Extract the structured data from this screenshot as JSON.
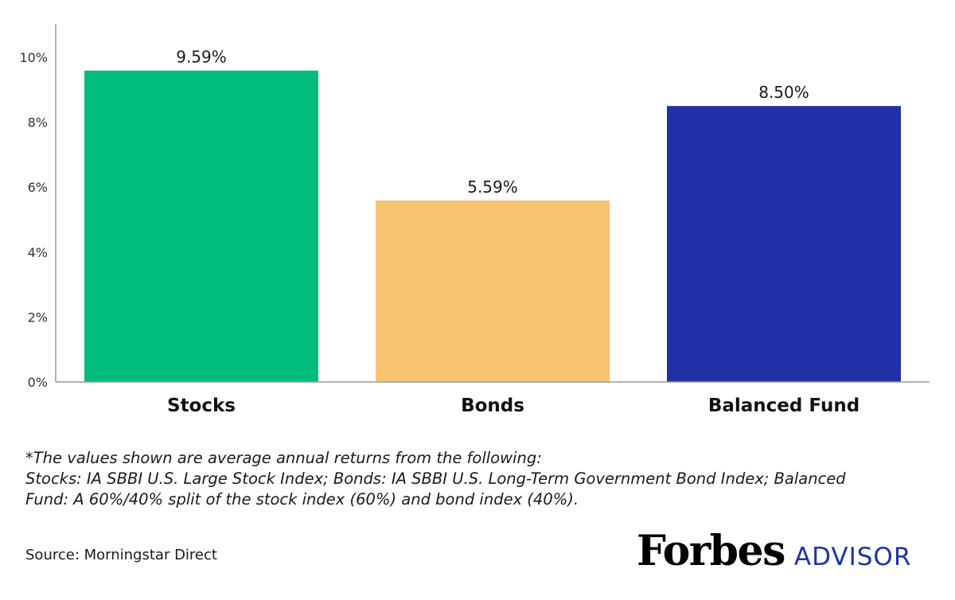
{
  "chart_data": {
    "type": "bar",
    "categories": [
      "Stocks",
      "Bonds",
      "Balanced Fund"
    ],
    "values": [
      9.59,
      5.59,
      8.5
    ],
    "value_labels": [
      "9.59%",
      "5.59%",
      "8.50%"
    ],
    "bar_colors": [
      "#00bc7e",
      "#f7c272",
      "#2130a6"
    ],
    "yticks": [
      0,
      2,
      4,
      6,
      8,
      10
    ],
    "ytick_labels": [
      "0%",
      "2%",
      "4%",
      "6%",
      "8%",
      "10%"
    ],
    "ylim": [
      0,
      11
    ],
    "grid": false,
    "legend": "none",
    "title": "",
    "xlabel": "",
    "ylabel": ""
  },
  "footnote": {
    "line1": "*The values shown are average annual returns from the following:",
    "line2": "Stocks: IA SBBI U.S. Large Stock Index; Bonds: IA SBBI U.S. Long-Term Government Bond Index; Balanced",
    "line3": "Fund: A 60%/40% split of the stock index (60%) and bond index (40%)."
  },
  "source": "Source: Morningstar Direct",
  "logo": {
    "brand": "Forbes",
    "product": "ADVISOR"
  }
}
